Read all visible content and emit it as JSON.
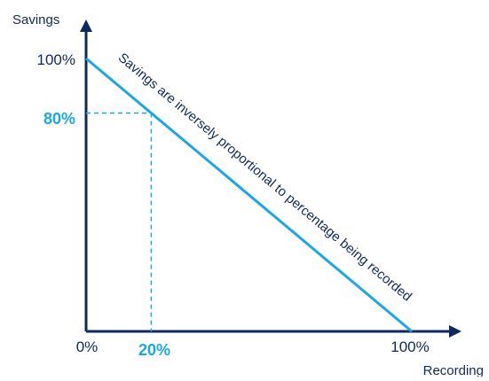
{
  "chart_data": {
    "type": "line",
    "ylabel": "Savings",
    "xlabel": "Recording",
    "x_ticks": [
      "0%",
      "20%",
      "100%"
    ],
    "y_ticks": [
      "100%",
      "80%"
    ],
    "xlim": [
      0,
      100
    ],
    "ylim": [
      0,
      100
    ],
    "series": [
      {
        "x": [
          0,
          100
        ],
        "y": [
          100,
          0
        ]
      }
    ],
    "annotation": {
      "text": "Savings are inversely proportional to percentage being recorded"
    },
    "highlight_point": {
      "x": 20,
      "y": 80,
      "x_label": "20%",
      "y_label": "80%"
    },
    "grid": false,
    "colors": {
      "axis": "#0d2a5c",
      "line": "#1aa7e6",
      "highlight": "#1aa7e6",
      "text": "#0d2a5c"
    }
  }
}
